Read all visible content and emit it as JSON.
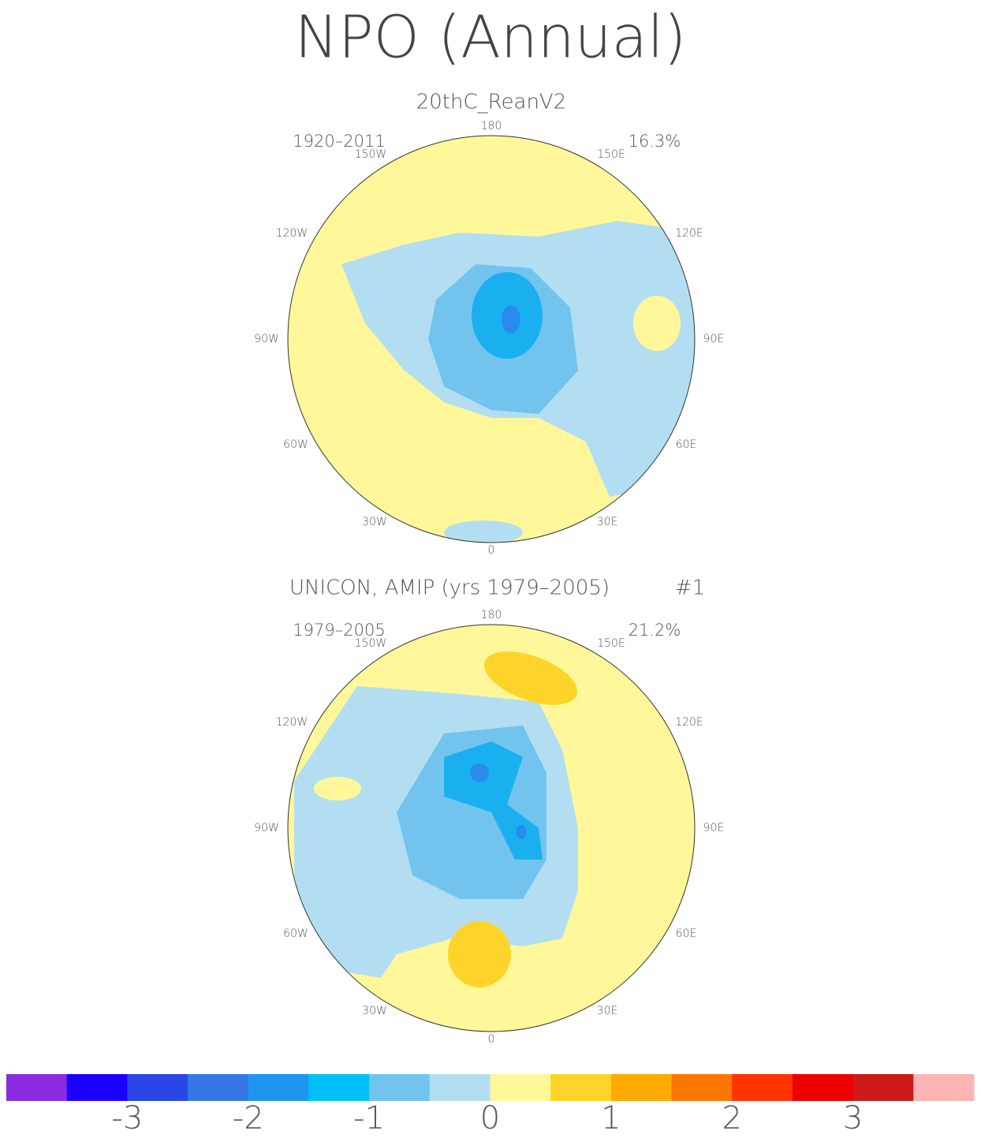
{
  "title": "NPO (Annual)",
  "panels": [
    {
      "title": "20thC_ReanV2",
      "period": "1920–2011",
      "variance": "16.3%",
      "lon_labels": [
        "180",
        "150W",
        "150E",
        "120W",
        "120E",
        "90W",
        "90E",
        "60W",
        "60E",
        "30W",
        "30E",
        "0"
      ]
    },
    {
      "title": "UNICON, AMIP (yrs 1979–2005)",
      "member": "#1",
      "period": "1979–2005",
      "variance": "21.2%",
      "lon_labels": [
        "180",
        "150W",
        "150E",
        "120W",
        "120E",
        "90W",
        "90E",
        "60W",
        "60E",
        "30W",
        "30E",
        "0"
      ]
    }
  ],
  "colorbar": {
    "lim": [
      -4,
      4
    ],
    "ticks": [
      -3,
      -2,
      -1,
      0,
      1,
      2,
      3
    ],
    "colors": [
      "#8a2be2",
      "#1a00ff",
      "#2a46e6",
      "#3377e6",
      "#1e96f0",
      "#00c0f8",
      "#72c4ef",
      "#b3def2",
      "#fff799",
      "#ffd42a",
      "#ffaa00",
      "#ff7700",
      "#ff3300",
      "#ee0000",
      "#cc1a1a",
      "#ffb4b4"
    ]
  }
}
